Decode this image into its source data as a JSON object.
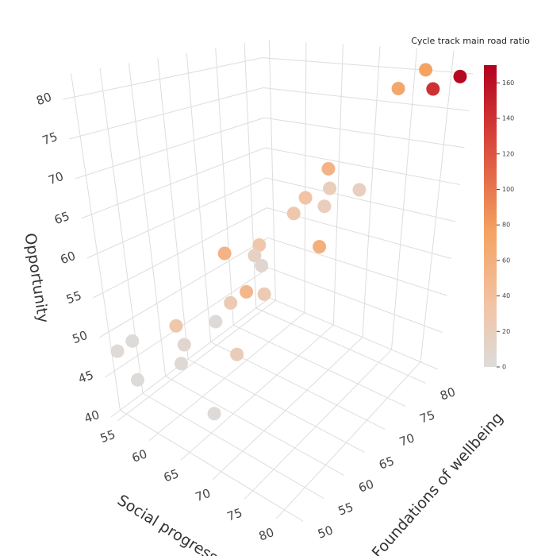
{
  "chart_data": {
    "type": "scatter3d",
    "x_label": "Social progress",
    "y_label": "Foundations of wellbeing",
    "z_label": "Opportunity",
    "colorbar_title": "Cycle track main road ratio",
    "xlim": [
      54,
      83
    ],
    "ylim": [
      48,
      83
    ],
    "zlim": [
      40,
      83
    ],
    "xticks": [
      55,
      60,
      65,
      70,
      75,
      80
    ],
    "yticks": [
      50,
      55,
      60,
      65,
      70,
      75,
      80
    ],
    "zticks": [
      40,
      45,
      50,
      55,
      60,
      65,
      70,
      75,
      80
    ],
    "x": [
      82,
      78,
      80,
      76,
      72,
      73,
      75,
      71,
      73,
      70,
      73,
      67,
      67,
      68,
      64,
      67,
      66,
      69,
      65,
      68,
      61,
      62,
      62,
      56,
      55,
      56,
      65
    ],
    "y": [
      82,
      81,
      80,
      79,
      72,
      71,
      74,
      69,
      70,
      68,
      69,
      65,
      64,
      64,
      62,
      62,
      60,
      63,
      58,
      58,
      55,
      55,
      54,
      52,
      50,
      52,
      56
    ],
    "z": [
      80,
      81,
      79,
      79,
      70,
      68,
      67,
      67,
      66,
      65,
      61,
      61,
      60,
      59,
      60,
      56,
      55,
      56,
      53,
      50,
      52,
      50,
      48,
      49,
      48,
      44,
      42
    ],
    "values": [
      165,
      75,
      140,
      70,
      55,
      20,
      18,
      35,
      20,
      30,
      60,
      30,
      15,
      8,
      55,
      50,
      25,
      25,
      3,
      22,
      30,
      8,
      6,
      2,
      3,
      2,
      3
    ],
    "clim": [
      0,
      170
    ],
    "cticks": [
      0,
      20,
      40,
      60,
      80,
      100,
      120,
      140,
      160
    ],
    "colorscale": [
      [
        0,
        "#dcdcdc"
      ],
      [
        0.2,
        "#f2c4a6"
      ],
      [
        0.45,
        "#f4a261"
      ],
      [
        0.75,
        "#d9463a"
      ],
      [
        1,
        "#b2001e"
      ]
    ],
    "grid": true
  }
}
